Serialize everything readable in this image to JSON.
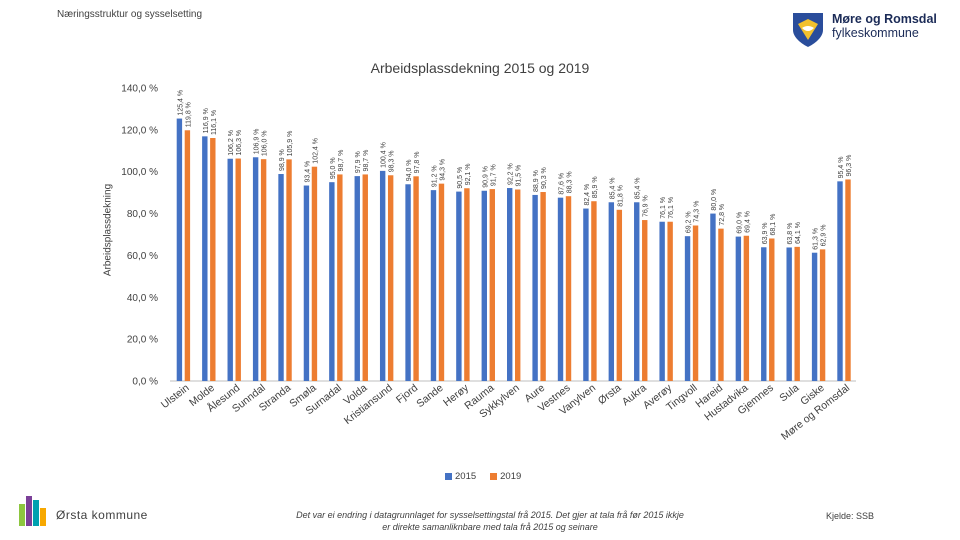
{
  "header": {
    "section_title": "Næringsstruktur og sysselsetting"
  },
  "logo": {
    "line1": "Møre og Romsdal",
    "line2": "fylkeskommune",
    "icon": "county-coat-of-arms-icon"
  },
  "footer": {
    "municipality": "Ørsta kommune",
    "note_line1": "Det var ei endring i datagrunnlaget for sysselsettingstal frå 2015. Det gjer at tala frå før 2015 ikkje",
    "note_line2": "er direkte samanliknbare med tala frå 2015 og seinare",
    "source": "Kjelde: SSB"
  },
  "colors": {
    "s2015": "#4472c4",
    "s2019": "#ed7d31",
    "grid": "#d9d9d9"
  },
  "chart_data": {
    "type": "bar",
    "title": "Arbeidsplassdekning 2015 og 2019",
    "ylabel": "Arbeidsplassdekning",
    "xlabel": "",
    "ylim": [
      0,
      140
    ],
    "yticks": [
      "0,0 %",
      "20,0 %",
      "40,0 %",
      "60,0 %",
      "80,0 %",
      "100,0 %",
      "120,0 %",
      "140,0 %"
    ],
    "grid": false,
    "legend": "bottom",
    "categories": [
      "Ulstein",
      "Molde",
      "Ålesund",
      "Sunndal",
      "Stranda",
      "Smøla",
      "Surnadal",
      "Volda",
      "Kristiansund",
      "Fjord",
      "Sande",
      "Herøy",
      "Rauma",
      "Sykkylven",
      "Aure",
      "Vestnes",
      "Vanylven",
      "Ørsta",
      "Aukra",
      "Averøy",
      "Tingvoll",
      "Hareid",
      "Hustadvika",
      "Gjemnes",
      "Sula",
      "Giske",
      "Møre og Romsdal"
    ],
    "series": [
      {
        "name": "2015",
        "values": [
          125.4,
          116.9,
          106.2,
          106.9,
          98.9,
          93.4,
          95.0,
          97.9,
          100.4,
          94.0,
          91.2,
          90.5,
          90.9,
          92.2,
          88.9,
          87.6,
          82.4,
          85.4,
          85.4,
          76.1,
          69.2,
          80.0,
          69.0,
          63.9,
          63.8,
          61.3,
          95.4
        ],
        "labels": [
          "125,4 %",
          "116,9 %",
          "106,2 %",
          "106,9 %",
          "98,9 %",
          "93,4 %",
          "95,0 %",
          "97,9 %",
          "100,4 %",
          "94,0 %",
          "91,2 %",
          "90,5 %",
          "90,9 %",
          "92,2 %",
          "88,9 %",
          "87,6 %",
          "82,4 %",
          "85,4 %",
          "85,4 %",
          "76,1 %",
          "69,2 %",
          "80,0 %",
          "69,0 %",
          "63,9 %",
          "63,8 %",
          "61,3 %",
          "95,4 %"
        ]
      },
      {
        "name": "2019",
        "values": [
          119.8,
          116.1,
          106.3,
          106.0,
          105.9,
          102.4,
          98.7,
          98.7,
          98.3,
          97.8,
          94.3,
          92.1,
          91.7,
          91.5,
          90.3,
          88.3,
          85.9,
          81.8,
          76.9,
          76.1,
          74.3,
          72.8,
          69.4,
          68.1,
          64.1,
          62.9,
          96.3
        ],
        "labels": [
          "119,8 %",
          "116,1 %",
          "106,3 %",
          "106,0 %",
          "105,9 %",
          "102,4 %",
          "98,7 %",
          "98,7 %",
          "98,3 %",
          "97,8 %",
          "94,3 %",
          "92,1 %",
          "91,7 %",
          "91,5 %",
          "90,3 %",
          "88,3 %",
          "85,9 %",
          "81,8 %",
          "76,9 %",
          "76,1 %",
          "74,3 %",
          "72,8 %",
          "69,4 %",
          "68,1 %",
          "64,1 %",
          "62,9 %",
          "96,3 %"
        ]
      }
    ]
  }
}
